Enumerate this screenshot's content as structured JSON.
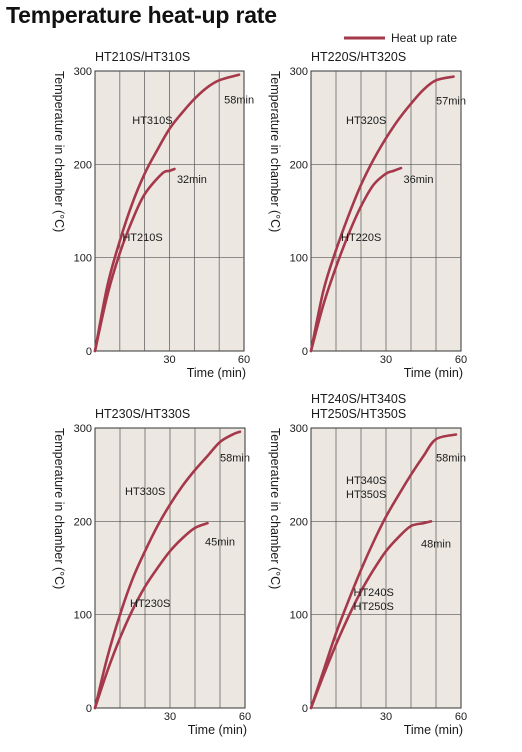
{
  "page_title": "Temperature heat-up rate",
  "legend": {
    "label": "Heat up rate",
    "color": "#a6384b"
  },
  "colors": {
    "plot_bg": "#ece8e1",
    "grid": "#555555",
    "curve": "#a6384b"
  },
  "chart_data": [
    {
      "type": "line",
      "title_lines": [
        "HT210S/HT310S"
      ],
      "ylabel": "Temperature in chamber (°C)",
      "xlabel": "Time (min)",
      "xlim": [
        0,
        60
      ],
      "ylim": [
        0,
        300
      ],
      "xticks": [
        30,
        60
      ],
      "yticks": [
        0,
        100,
        200,
        300
      ],
      "grid": true,
      "series": [
        {
          "name": "HT310S",
          "end_label": "58min",
          "points": [
            [
              0,
              0
            ],
            [
              5,
              70
            ],
            [
              10,
              118
            ],
            [
              15,
              158
            ],
            [
              20,
              190
            ],
            [
              25,
              215
            ],
            [
              30,
              238
            ],
            [
              35,
              255
            ],
            [
              40,
              270
            ],
            [
              45,
              282
            ],
            [
              50,
              290
            ],
            [
              58,
              296
            ]
          ]
        },
        {
          "name": "HT210S",
          "end_label": "32min",
          "points": [
            [
              0,
              0
            ],
            [
              5,
              60
            ],
            [
              10,
              105
            ],
            [
              15,
              140
            ],
            [
              20,
              168
            ],
            [
              27,
              190
            ],
            [
              30,
              193
            ],
            [
              32,
              195
            ]
          ]
        }
      ]
    },
    {
      "type": "line",
      "title_lines": [
        "HT220S/HT320S"
      ],
      "ylabel": "Temperature in chamber (°C)",
      "xlabel": "Time (min)",
      "xlim": [
        0,
        60
      ],
      "ylim": [
        0,
        300
      ],
      "xticks": [
        30,
        60
      ],
      "yticks": [
        0,
        100,
        200,
        300
      ],
      "grid": true,
      "series": [
        {
          "name": "HT320S",
          "end_label": "57min",
          "points": [
            [
              0,
              0
            ],
            [
              5,
              65
            ],
            [
              10,
              108
            ],
            [
              15,
              145
            ],
            [
              20,
              178
            ],
            [
              25,
              205
            ],
            [
              30,
              228
            ],
            [
              35,
              248
            ],
            [
              40,
              265
            ],
            [
              45,
              280
            ],
            [
              50,
              290
            ],
            [
              57,
              294
            ]
          ]
        },
        {
          "name": "HT220S",
          "end_label": "36min",
          "points": [
            [
              0,
              0
            ],
            [
              5,
              50
            ],
            [
              10,
              90
            ],
            [
              15,
              125
            ],
            [
              20,
              155
            ],
            [
              25,
              178
            ],
            [
              30,
              190
            ],
            [
              33,
              193
            ],
            [
              36,
              196
            ]
          ]
        }
      ]
    },
    {
      "type": "line",
      "title_lines": [
        "HT230S/HT330S"
      ],
      "ylabel": "Temperature in chamber (°C)",
      "xlabel": "Time (min)",
      "xlim": [
        0,
        60
      ],
      "ylim": [
        0,
        300
      ],
      "xticks": [
        30,
        60
      ],
      "yticks": [
        0,
        100,
        200,
        300
      ],
      "grid": true,
      "series": [
        {
          "name": "HT330S",
          "end_label": "58min",
          "points": [
            [
              0,
              0
            ],
            [
              5,
              55
            ],
            [
              10,
              100
            ],
            [
              15,
              138
            ],
            [
              20,
              168
            ],
            [
              25,
              195
            ],
            [
              30,
              218
            ],
            [
              35,
              238
            ],
            [
              40,
              255
            ],
            [
              45,
              270
            ],
            [
              50,
              285
            ],
            [
              55,
              293
            ],
            [
              58,
              296
            ]
          ]
        },
        {
          "name": "HT230S",
          "end_label": "45min",
          "points": [
            [
              0,
              0
            ],
            [
              5,
              40
            ],
            [
              10,
              75
            ],
            [
              15,
              105
            ],
            [
              20,
              130
            ],
            [
              25,
              150
            ],
            [
              30,
              168
            ],
            [
              35,
              182
            ],
            [
              40,
              193
            ],
            [
              45,
              198
            ]
          ]
        }
      ]
    },
    {
      "type": "line",
      "title_lines": [
        "HT240S/HT340S",
        "HT250S/HT350S"
      ],
      "ylabel": "Temperature in chamber (°C)",
      "xlabel": "Time (min)",
      "xlim": [
        0,
        60
      ],
      "ylim": [
        0,
        300
      ],
      "xticks": [
        30,
        60
      ],
      "yticks": [
        0,
        100,
        200,
        300
      ],
      "grid": true,
      "series": [
        {
          "name": "HT340S\nHT350S",
          "end_label": "58min",
          "points": [
            [
              0,
              0
            ],
            [
              5,
              40
            ],
            [
              10,
              80
            ],
            [
              15,
              115
            ],
            [
              20,
              148
            ],
            [
              25,
              178
            ],
            [
              30,
              205
            ],
            [
              35,
              228
            ],
            [
              40,
              250
            ],
            [
              45,
              270
            ],
            [
              50,
              288
            ],
            [
              58,
              293
            ]
          ]
        },
        {
          "name": "HT240S\nHT250S",
          "end_label": "48min",
          "points": [
            [
              0,
              0
            ],
            [
              5,
              35
            ],
            [
              10,
              68
            ],
            [
              15,
              98
            ],
            [
              20,
              125
            ],
            [
              25,
              148
            ],
            [
              30,
              168
            ],
            [
              35,
              183
            ],
            [
              40,
              195
            ],
            [
              45,
              198
            ],
            [
              48,
              200
            ]
          ]
        }
      ]
    }
  ]
}
